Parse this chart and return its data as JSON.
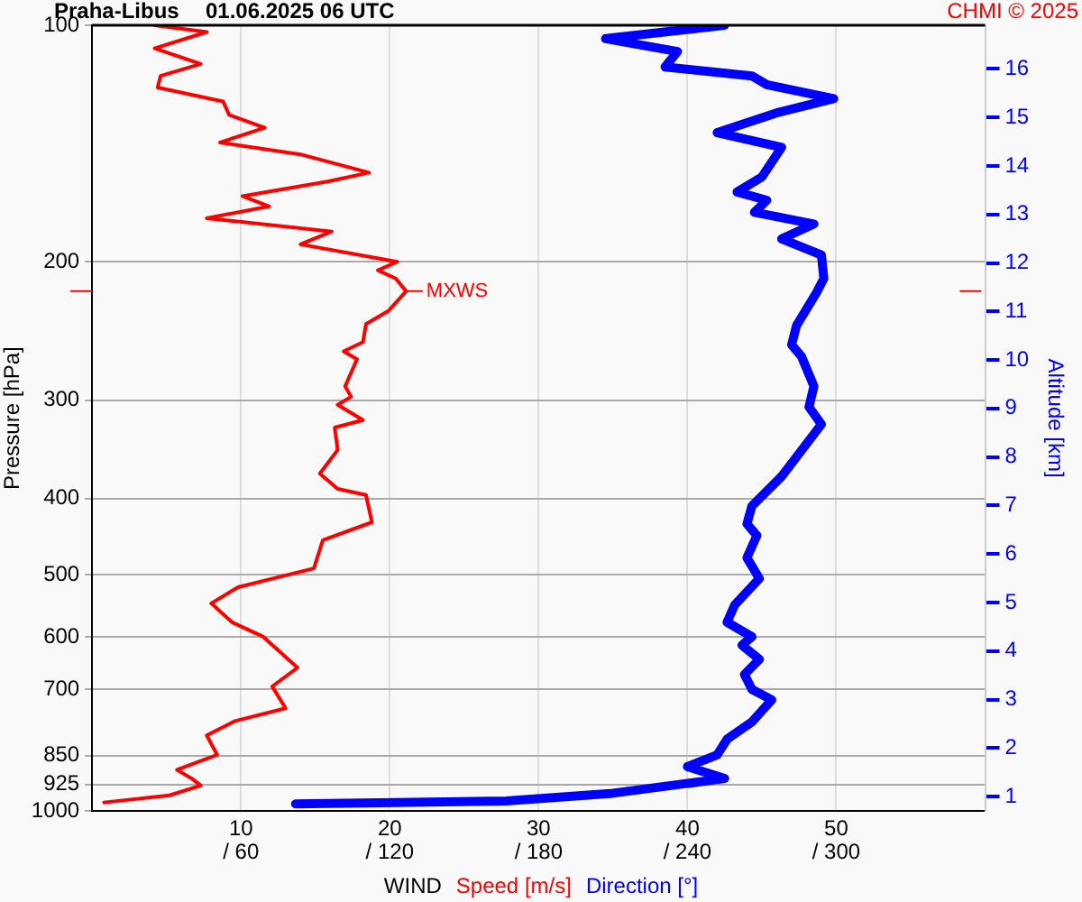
{
  "chart_data": {
    "type": "line",
    "title": "Praha-Libus",
    "subtitle": "01.06.2025 06 UTC",
    "xlabel": "WIND",
    "ylabel": "Pressure [hPa]",
    "y2label": "Altitude [km]",
    "annotations": [
      "CHMI © 2025",
      {
        "text": "MXWS",
        "x": 21,
        "y": 218
      }
    ],
    "xlim": [
      0,
      60
    ],
    "xticks": [
      10,
      20,
      30,
      40,
      50
    ],
    "x2lim": [
      0,
      360
    ],
    "x2ticks": [
      {
        "value": 60,
        "label": "/ 60"
      },
      {
        "value": 120,
        "label": "/ 120"
      },
      {
        "value": 180,
        "label": "/ 180"
      },
      {
        "value": 240,
        "label": "/ 240"
      },
      {
        "value": 300,
        "label": "/ 300"
      }
    ],
    "log": "y",
    "ylim": [
      1000,
      100
    ],
    "yticks": [
      100,
      200,
      300,
      400,
      500,
      600,
      700,
      850,
      925,
      1000
    ],
    "y2lim": [
      0.7,
      16.9
    ],
    "y2ticks": [
      1,
      2,
      3,
      4,
      5,
      6,
      7,
      8,
      9,
      10,
      11,
      12,
      13,
      14,
      15,
      16
    ],
    "grid": true,
    "legend": "bottom",
    "series": [
      {
        "name": "Speed [m/s]",
        "color": "#ff0000",
        "x": [
          4.2,
          7.7,
          4.2,
          7.3,
          4.6,
          4.4,
          8.8,
          9.2,
          11.6,
          8.6,
          14.0,
          18.6,
          15.9,
          10.1,
          11.9,
          7.7,
          16.1,
          14.0,
          20.5,
          19.2,
          20.4,
          21.1,
          19.9,
          18.4,
          18.2,
          16.9,
          17.8,
          17.0,
          17.4,
          16.5,
          18.2,
          16.3,
          16.5,
          15.3,
          16.5,
          18.4,
          18.8,
          15.5,
          14.9,
          9.8,
          8.0,
          9.4,
          11.5,
          13.8,
          12.1,
          13.0,
          9.6,
          7.7,
          8.4,
          5.7,
          6.7,
          7.3,
          5.2,
          0.8
        ],
        "values": [
          100,
          102,
          107,
          112,
          116,
          120,
          125,
          130,
          135,
          141,
          146,
          154,
          158,
          165,
          170,
          176,
          183,
          190,
          200,
          205,
          210,
          218,
          231,
          240,
          253,
          260,
          266,
          288,
          297,
          304,
          318,
          325,
          347,
          372,
          389,
          396,
          429,
          452,
          491,
          519,
          544,
          575,
          600,
          657,
          694,
          740,
          768,
          801,
          848,
          886,
          909,
          928,
          955,
          975
        ]
      },
      {
        "name": "Direction [°]",
        "color": "#0000ff",
        "axis": "x2",
        "x": [
          255,
          207,
          236,
          231,
          266,
          272,
          299,
          277,
          252,
          278,
          270,
          260,
          272,
          267,
          291,
          278,
          294,
          295,
          292,
          284,
          282,
          286,
          291,
          289,
          294,
          278,
          266,
          264,
          268,
          264,
          269,
          259,
          256,
          266,
          262,
          269,
          263,
          266,
          274,
          266,
          256,
          252,
          240,
          255,
          210,
          167,
          82
        ],
        "values": [
          100,
          104,
          108,
          113,
          116,
          119,
          124,
          129,
          137,
          143,
          156,
          163,
          167,
          173,
          179,
          187,
          196,
          210,
          219,
          241,
          255,
          264,
          288,
          306,
          322,
          375,
          409,
          431,
          446,
          476,
          506,
          547,
          575,
          600,
          615,
          641,
          670,
          700,
          722,
          770,
          810,
          848,
          878,
          909,
          949,
          971,
          979
        ]
      }
    ]
  }
}
